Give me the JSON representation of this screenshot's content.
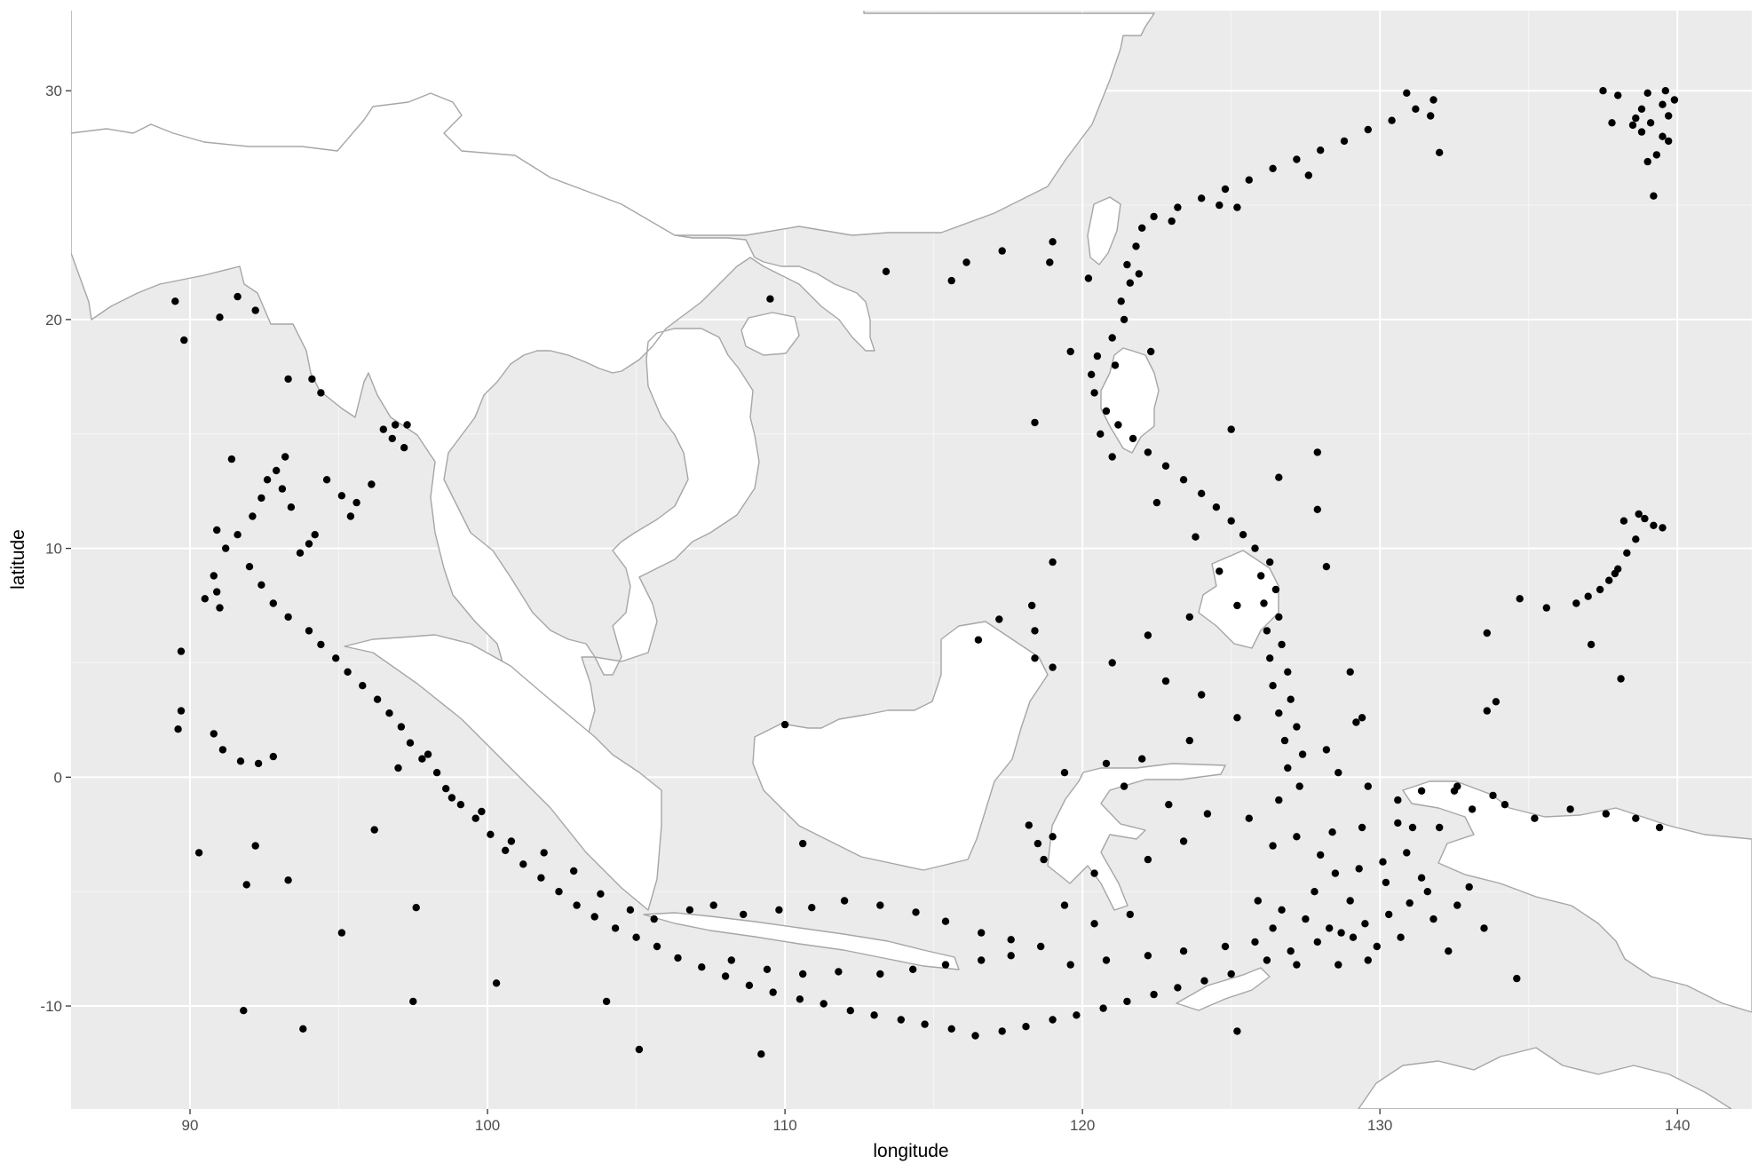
{
  "chart_data": {
    "type": "scatter",
    "xlabel": "longitude",
    "ylabel": "latitude",
    "xlim": [
      86,
      142.5
    ],
    "ylim": [
      -14.5,
      33.5
    ],
    "x_ticks": [
      90,
      100,
      110,
      120,
      130,
      140
    ],
    "y_ticks": [
      -10,
      0,
      10,
      20,
      30
    ],
    "grid": true,
    "colors": {
      "panel_background": "#ebebeb",
      "major_grid": "#ffffff",
      "land": "#ffffff",
      "coastline": "#a6a6a6",
      "points": "#000000"
    },
    "points": [
      [
        94.0,
        10.2
      ],
      [
        93.7,
        9.8
      ],
      [
        94.2,
        10.6
      ],
      [
        93.4,
        11.8
      ],
      [
        93.1,
        12.6
      ],
      [
        92.9,
        13.4
      ],
      [
        93.2,
        14.0
      ],
      [
        92.6,
        13.0
      ],
      [
        92.4,
        12.2
      ],
      [
        92.1,
        11.4
      ],
      [
        91.6,
        10.6
      ],
      [
        91.2,
        10.0
      ],
      [
        90.9,
        10.8
      ],
      [
        91.4,
        13.9
      ],
      [
        92.0,
        9.2
      ],
      [
        92.4,
        8.4
      ],
      [
        92.8,
        7.6
      ],
      [
        93.3,
        7.0
      ],
      [
        94.0,
        6.4
      ],
      [
        94.4,
        5.8
      ],
      [
        94.9,
        5.2
      ],
      [
        95.3,
        4.6
      ],
      [
        95.8,
        4.0
      ],
      [
        96.3,
        3.4
      ],
      [
        96.7,
        2.8
      ],
      [
        97.1,
        2.2
      ],
      [
        97.4,
        1.5
      ],
      [
        97.8,
        0.8
      ],
      [
        98.3,
        0.2
      ],
      [
        98.6,
        -0.5
      ],
      [
        99.1,
        -1.2
      ],
      [
        99.6,
        -1.8
      ],
      [
        100.1,
        -2.5
      ],
      [
        100.6,
        -3.2
      ],
      [
        101.2,
        -3.8
      ],
      [
        101.8,
        -4.4
      ],
      [
        102.4,
        -5.0
      ],
      [
        103.0,
        -5.6
      ],
      [
        103.6,
        -6.1
      ],
      [
        104.3,
        -6.6
      ],
      [
        105.0,
        -7.0
      ],
      [
        105.7,
        -7.4
      ],
      [
        106.4,
        -7.9
      ],
      [
        107.2,
        -8.3
      ],
      [
        108.0,
        -8.7
      ],
      [
        108.8,
        -9.1
      ],
      [
        109.6,
        -9.4
      ],
      [
        110.5,
        -9.7
      ],
      [
        111.3,
        -9.9
      ],
      [
        112.2,
        -10.2
      ],
      [
        113.0,
        -10.4
      ],
      [
        113.9,
        -10.6
      ],
      [
        114.7,
        -10.8
      ],
      [
        115.6,
        -11.0
      ],
      [
        116.4,
        -11.3
      ],
      [
        117.3,
        -11.1
      ],
      [
        118.1,
        -10.9
      ],
      [
        119.0,
        -10.6
      ],
      [
        119.8,
        -10.4
      ],
      [
        120.7,
        -10.1
      ],
      [
        121.5,
        -9.8
      ],
      [
        122.4,
        -9.5
      ],
      [
        123.2,
        -9.2
      ],
      [
        124.1,
        -8.9
      ],
      [
        125.0,
        -8.6
      ],
      [
        126.2,
        -8.0
      ],
      [
        127.0,
        -7.6
      ],
      [
        127.9,
        -7.2
      ],
      [
        128.7,
        -6.8
      ],
      [
        129.5,
        -6.4
      ],
      [
        130.3,
        -6.0
      ],
      [
        131.0,
        -5.5
      ],
      [
        131.6,
        -5.0
      ],
      [
        130.7,
        -7.0
      ],
      [
        129.9,
        -7.4
      ],
      [
        129.1,
        -7.0
      ],
      [
        128.3,
        -6.6
      ],
      [
        127.5,
        -6.2
      ],
      [
        126.7,
        -5.8
      ],
      [
        125.9,
        -5.4
      ],
      [
        128.5,
        -4.2
      ],
      [
        129.3,
        -4.0
      ],
      [
        130.1,
        -3.7
      ],
      [
        130.9,
        -3.3
      ],
      [
        126.4,
        -3.0
      ],
      [
        127.2,
        -2.6
      ],
      [
        125.6,
        -1.8
      ],
      [
        126.6,
        -1.0
      ],
      [
        127.3,
        -0.4
      ],
      [
        126.9,
        0.4
      ],
      [
        127.4,
        1.0
      ],
      [
        126.8,
        1.6
      ],
      [
        127.2,
        2.2
      ],
      [
        126.6,
        2.8
      ],
      [
        127.0,
        3.4
      ],
      [
        126.4,
        4.0
      ],
      [
        126.9,
        4.6
      ],
      [
        126.3,
        5.2
      ],
      [
        126.7,
        5.8
      ],
      [
        126.2,
        6.4
      ],
      [
        126.6,
        7.0
      ],
      [
        126.1,
        7.6
      ],
      [
        126.5,
        8.2
      ],
      [
        126.0,
        8.8
      ],
      [
        126.3,
        9.4
      ],
      [
        125.8,
        10.0
      ],
      [
        125.4,
        10.6
      ],
      [
        125.0,
        11.2
      ],
      [
        124.5,
        11.8
      ],
      [
        124.0,
        12.4
      ],
      [
        123.4,
        13.0
      ],
      [
        122.8,
        13.6
      ],
      [
        122.2,
        14.2
      ],
      [
        121.7,
        14.8
      ],
      [
        121.2,
        15.4
      ],
      [
        120.8,
        16.0
      ],
      [
        120.4,
        16.8
      ],
      [
        120.3,
        17.6
      ],
      [
        120.5,
        18.4
      ],
      [
        121.0,
        19.2
      ],
      [
        121.4,
        20.0
      ],
      [
        121.3,
        20.8
      ],
      [
        121.6,
        21.6
      ],
      [
        121.5,
        22.4
      ],
      [
        121.8,
        23.2
      ],
      [
        122.0,
        24.0
      ],
      [
        122.4,
        24.5
      ],
      [
        123.2,
        24.9
      ],
      [
        124.0,
        25.3
      ],
      [
        124.8,
        25.7
      ],
      [
        125.6,
        26.1
      ],
      [
        126.4,
        26.6
      ],
      [
        127.2,
        27.0
      ],
      [
        128.0,
        27.4
      ],
      [
        128.8,
        27.8
      ],
      [
        129.6,
        28.3
      ],
      [
        130.4,
        28.7
      ],
      [
        131.2,
        29.2
      ],
      [
        131.8,
        29.6
      ],
      [
        130.9,
        29.9
      ],
      [
        123.0,
        24.3
      ],
      [
        125.2,
        24.9
      ],
      [
        127.6,
        26.3
      ],
      [
        124.6,
        25.0
      ],
      [
        121.9,
        22.0
      ],
      [
        121.1,
        18.0
      ],
      [
        120.6,
        15.0
      ],
      [
        118.4,
        15.5
      ],
      [
        121.0,
        14.0
      ],
      [
        122.5,
        12.0
      ],
      [
        123.8,
        10.5
      ],
      [
        124.6,
        9.0
      ],
      [
        125.2,
        7.5
      ],
      [
        123.6,
        7.0
      ],
      [
        122.2,
        6.2
      ],
      [
        121.0,
        5.0
      ],
      [
        122.8,
        4.2
      ],
      [
        124.0,
        3.6
      ],
      [
        125.2,
        2.6
      ],
      [
        123.6,
        1.6
      ],
      [
        122.0,
        0.8
      ],
      [
        120.8,
        0.6
      ],
      [
        119.4,
        0.2
      ],
      [
        121.4,
        -0.4
      ],
      [
        122.9,
        -1.2
      ],
      [
        124.2,
        -1.6
      ],
      [
        123.4,
        -2.8
      ],
      [
        122.2,
        -3.6
      ],
      [
        120.4,
        -4.2
      ],
      [
        119.0,
        -2.6
      ],
      [
        118.6,
        -7.4
      ],
      [
        117.6,
        -7.8
      ],
      [
        116.6,
        -8.0
      ],
      [
        115.4,
        -8.2
      ],
      [
        114.3,
        -8.4
      ],
      [
        113.2,
        -8.6
      ],
      [
        111.8,
        -8.5
      ],
      [
        110.6,
        -8.6
      ],
      [
        109.4,
        -8.4
      ],
      [
        108.2,
        -8.0
      ],
      [
        119.6,
        -8.2
      ],
      [
        120.8,
        -8.0
      ],
      [
        122.2,
        -7.8
      ],
      [
        123.4,
        -7.6
      ],
      [
        124.8,
        -7.4
      ],
      [
        125.8,
        -7.2
      ],
      [
        127.2,
        -8.2
      ],
      [
        128.6,
        -8.2
      ],
      [
        129.6,
        -8.0
      ],
      [
        126.4,
        -6.6
      ],
      [
        127.8,
        -5.0
      ],
      [
        129.0,
        -5.4
      ],
      [
        130.2,
        -4.6
      ],
      [
        131.4,
        -4.4
      ],
      [
        132.0,
        -2.2
      ],
      [
        133.1,
        -1.4
      ],
      [
        134.2,
        -1.2
      ],
      [
        136.4,
        -1.4
      ],
      [
        137.6,
        -1.6
      ],
      [
        138.6,
        -1.8
      ],
      [
        139.4,
        -2.2
      ],
      [
        135.2,
        -1.8
      ],
      [
        133.8,
        -0.8
      ],
      [
        132.6,
        -0.4
      ],
      [
        131.4,
        -0.6
      ],
      [
        130.6,
        -1.0
      ],
      [
        129.6,
        -0.4
      ],
      [
        128.6,
        0.2
      ],
      [
        128.2,
        1.2
      ],
      [
        129.2,
        2.4
      ],
      [
        128.4,
        -2.4
      ],
      [
        129.4,
        -2.2
      ],
      [
        130.6,
        -2.0
      ],
      [
        128.0,
        -3.4
      ],
      [
        131.8,
        -6.2
      ],
      [
        132.6,
        -5.6
      ],
      [
        133.0,
        -4.8
      ],
      [
        133.5,
        -6.6
      ],
      [
        132.3,
        -7.6
      ],
      [
        134.6,
        -8.8
      ],
      [
        138.2,
        11.2
      ],
      [
        138.7,
        11.5
      ],
      [
        139.2,
        11.0
      ],
      [
        139.5,
        10.9
      ],
      [
        138.6,
        10.4
      ],
      [
        138.3,
        9.8
      ],
      [
        138.0,
        9.1
      ],
      [
        137.7,
        8.6
      ],
      [
        137.4,
        8.2
      ],
      [
        137.0,
        7.9
      ],
      [
        136.6,
        7.6
      ],
      [
        135.6,
        7.4
      ],
      [
        137.9,
        8.9
      ],
      [
        138.9,
        11.3
      ],
      [
        134.7,
        7.8
      ],
      [
        133.6,
        6.3
      ],
      [
        137.1,
        5.8
      ],
      [
        138.1,
        4.3
      ],
      [
        133.6,
        2.9
      ],
      [
        133.9,
        3.3
      ],
      [
        138.0,
        29.8
      ],
      [
        139.0,
        29.9
      ],
      [
        139.5,
        29.4
      ],
      [
        139.1,
        28.6
      ],
      [
        138.8,
        28.2
      ],
      [
        139.7,
        27.8
      ],
      [
        139.3,
        27.2
      ],
      [
        138.6,
        28.8
      ],
      [
        139.6,
        30.0
      ],
      [
        137.5,
        30.0
      ],
      [
        138.5,
        28.5
      ],
      [
        139.0,
        26.9
      ],
      [
        139.2,
        25.4
      ],
      [
        139.5,
        28.0
      ],
      [
        138.8,
        29.2
      ],
      [
        137.8,
        28.6
      ],
      [
        139.9,
        29.6
      ],
      [
        139.7,
        28.9
      ],
      [
        131.7,
        28.9
      ],
      [
        132.0,
        27.3
      ],
      [
        89.5,
        20.8
      ],
      [
        89.8,
        19.1
      ],
      [
        91.0,
        20.1
      ],
      [
        92.2,
        20.4
      ],
      [
        91.6,
        21.0
      ],
      [
        93.3,
        17.4
      ],
      [
        94.1,
        17.4
      ],
      [
        94.4,
        16.8
      ],
      [
        96.5,
        15.2
      ],
      [
        96.9,
        15.4
      ],
      [
        97.3,
        15.4
      ],
      [
        96.8,
        14.8
      ],
      [
        97.2,
        14.4
      ],
      [
        94.6,
        13.0
      ],
      [
        95.1,
        12.3
      ],
      [
        95.6,
        12.0
      ],
      [
        96.1,
        12.8
      ],
      [
        95.4,
        11.4
      ],
      [
        90.9,
        8.1
      ],
      [
        90.8,
        8.8
      ],
      [
        90.5,
        7.8
      ],
      [
        91.0,
        7.4
      ],
      [
        89.7,
        5.5
      ],
      [
        89.7,
        2.9
      ],
      [
        89.6,
        2.1
      ],
      [
        90.8,
        1.9
      ],
      [
        91.1,
        1.2
      ],
      [
        91.7,
        0.7
      ],
      [
        92.3,
        0.6
      ],
      [
        92.8,
        0.9
      ],
      [
        90.3,
        -3.3
      ],
      [
        92.2,
        -3.0
      ],
      [
        93.3,
        -4.5
      ],
      [
        91.9,
        -4.7
      ],
      [
        95.1,
        -6.8
      ],
      [
        97.6,
        -5.7
      ],
      [
        91.8,
        -10.2
      ],
      [
        93.8,
        -11.0
      ],
      [
        97.5,
        -9.8
      ],
      [
        105.1,
        -11.9
      ],
      [
        104.0,
        -9.8
      ],
      [
        100.3,
        -9.0
      ],
      [
        96.2,
        -2.3
      ],
      [
        97.0,
        0.4
      ],
      [
        98.0,
        1.0
      ],
      [
        98.8,
        -0.9
      ],
      [
        99.8,
        -1.5
      ],
      [
        100.8,
        -2.8
      ],
      [
        101.9,
        -3.3
      ],
      [
        102.9,
        -4.1
      ],
      [
        103.8,
        -5.1
      ],
      [
        104.8,
        -5.8
      ],
      [
        105.6,
        -6.2
      ],
      [
        106.8,
        -5.8
      ],
      [
        107.6,
        -5.6
      ],
      [
        108.6,
        -6.0
      ],
      [
        109.8,
        -5.8
      ],
      [
        110.9,
        -5.7
      ],
      [
        112.0,
        -5.4
      ],
      [
        113.2,
        -5.6
      ],
      [
        114.4,
        -5.9
      ],
      [
        115.4,
        -6.3
      ],
      [
        116.6,
        -6.8
      ],
      [
        117.6,
        -7.1
      ],
      [
        109.2,
        -12.1
      ],
      [
        110.6,
        -2.9
      ],
      [
        110.0,
        2.3
      ],
      [
        116.5,
        6.0
      ],
      [
        117.2,
        6.9
      ],
      [
        118.4,
        6.4
      ],
      [
        118.4,
        5.2
      ],
      [
        119.0,
        4.8
      ],
      [
        119.0,
        9.4
      ],
      [
        118.3,
        7.5
      ],
      [
        118.2,
        -2.1
      ],
      [
        118.5,
        -2.9
      ],
      [
        118.7,
        -3.6
      ],
      [
        119.4,
        -5.6
      ],
      [
        120.4,
        -6.4
      ],
      [
        121.6,
        -6.0
      ],
      [
        109.5,
        20.9
      ],
      [
        113.4,
        22.1
      ],
      [
        115.6,
        21.7
      ],
      [
        116.1,
        22.5
      ],
      [
        117.3,
        23.0
      ],
      [
        118.9,
        22.5
      ],
      [
        119.0,
        23.4
      ],
      [
        120.2,
        21.8
      ],
      [
        119.6,
        18.6
      ],
      [
        127.9,
        14.2
      ],
      [
        122.3,
        18.6
      ],
      [
        125.0,
        15.2
      ],
      [
        126.6,
        13.1
      ],
      [
        127.9,
        11.7
      ],
      [
        128.2,
        9.2
      ],
      [
        129.0,
        4.6
      ],
      [
        129.4,
        2.6
      ],
      [
        131.1,
        -2.2
      ],
      [
        132.5,
        -0.6
      ],
      [
        125.2,
        -11.1
      ]
    ]
  }
}
